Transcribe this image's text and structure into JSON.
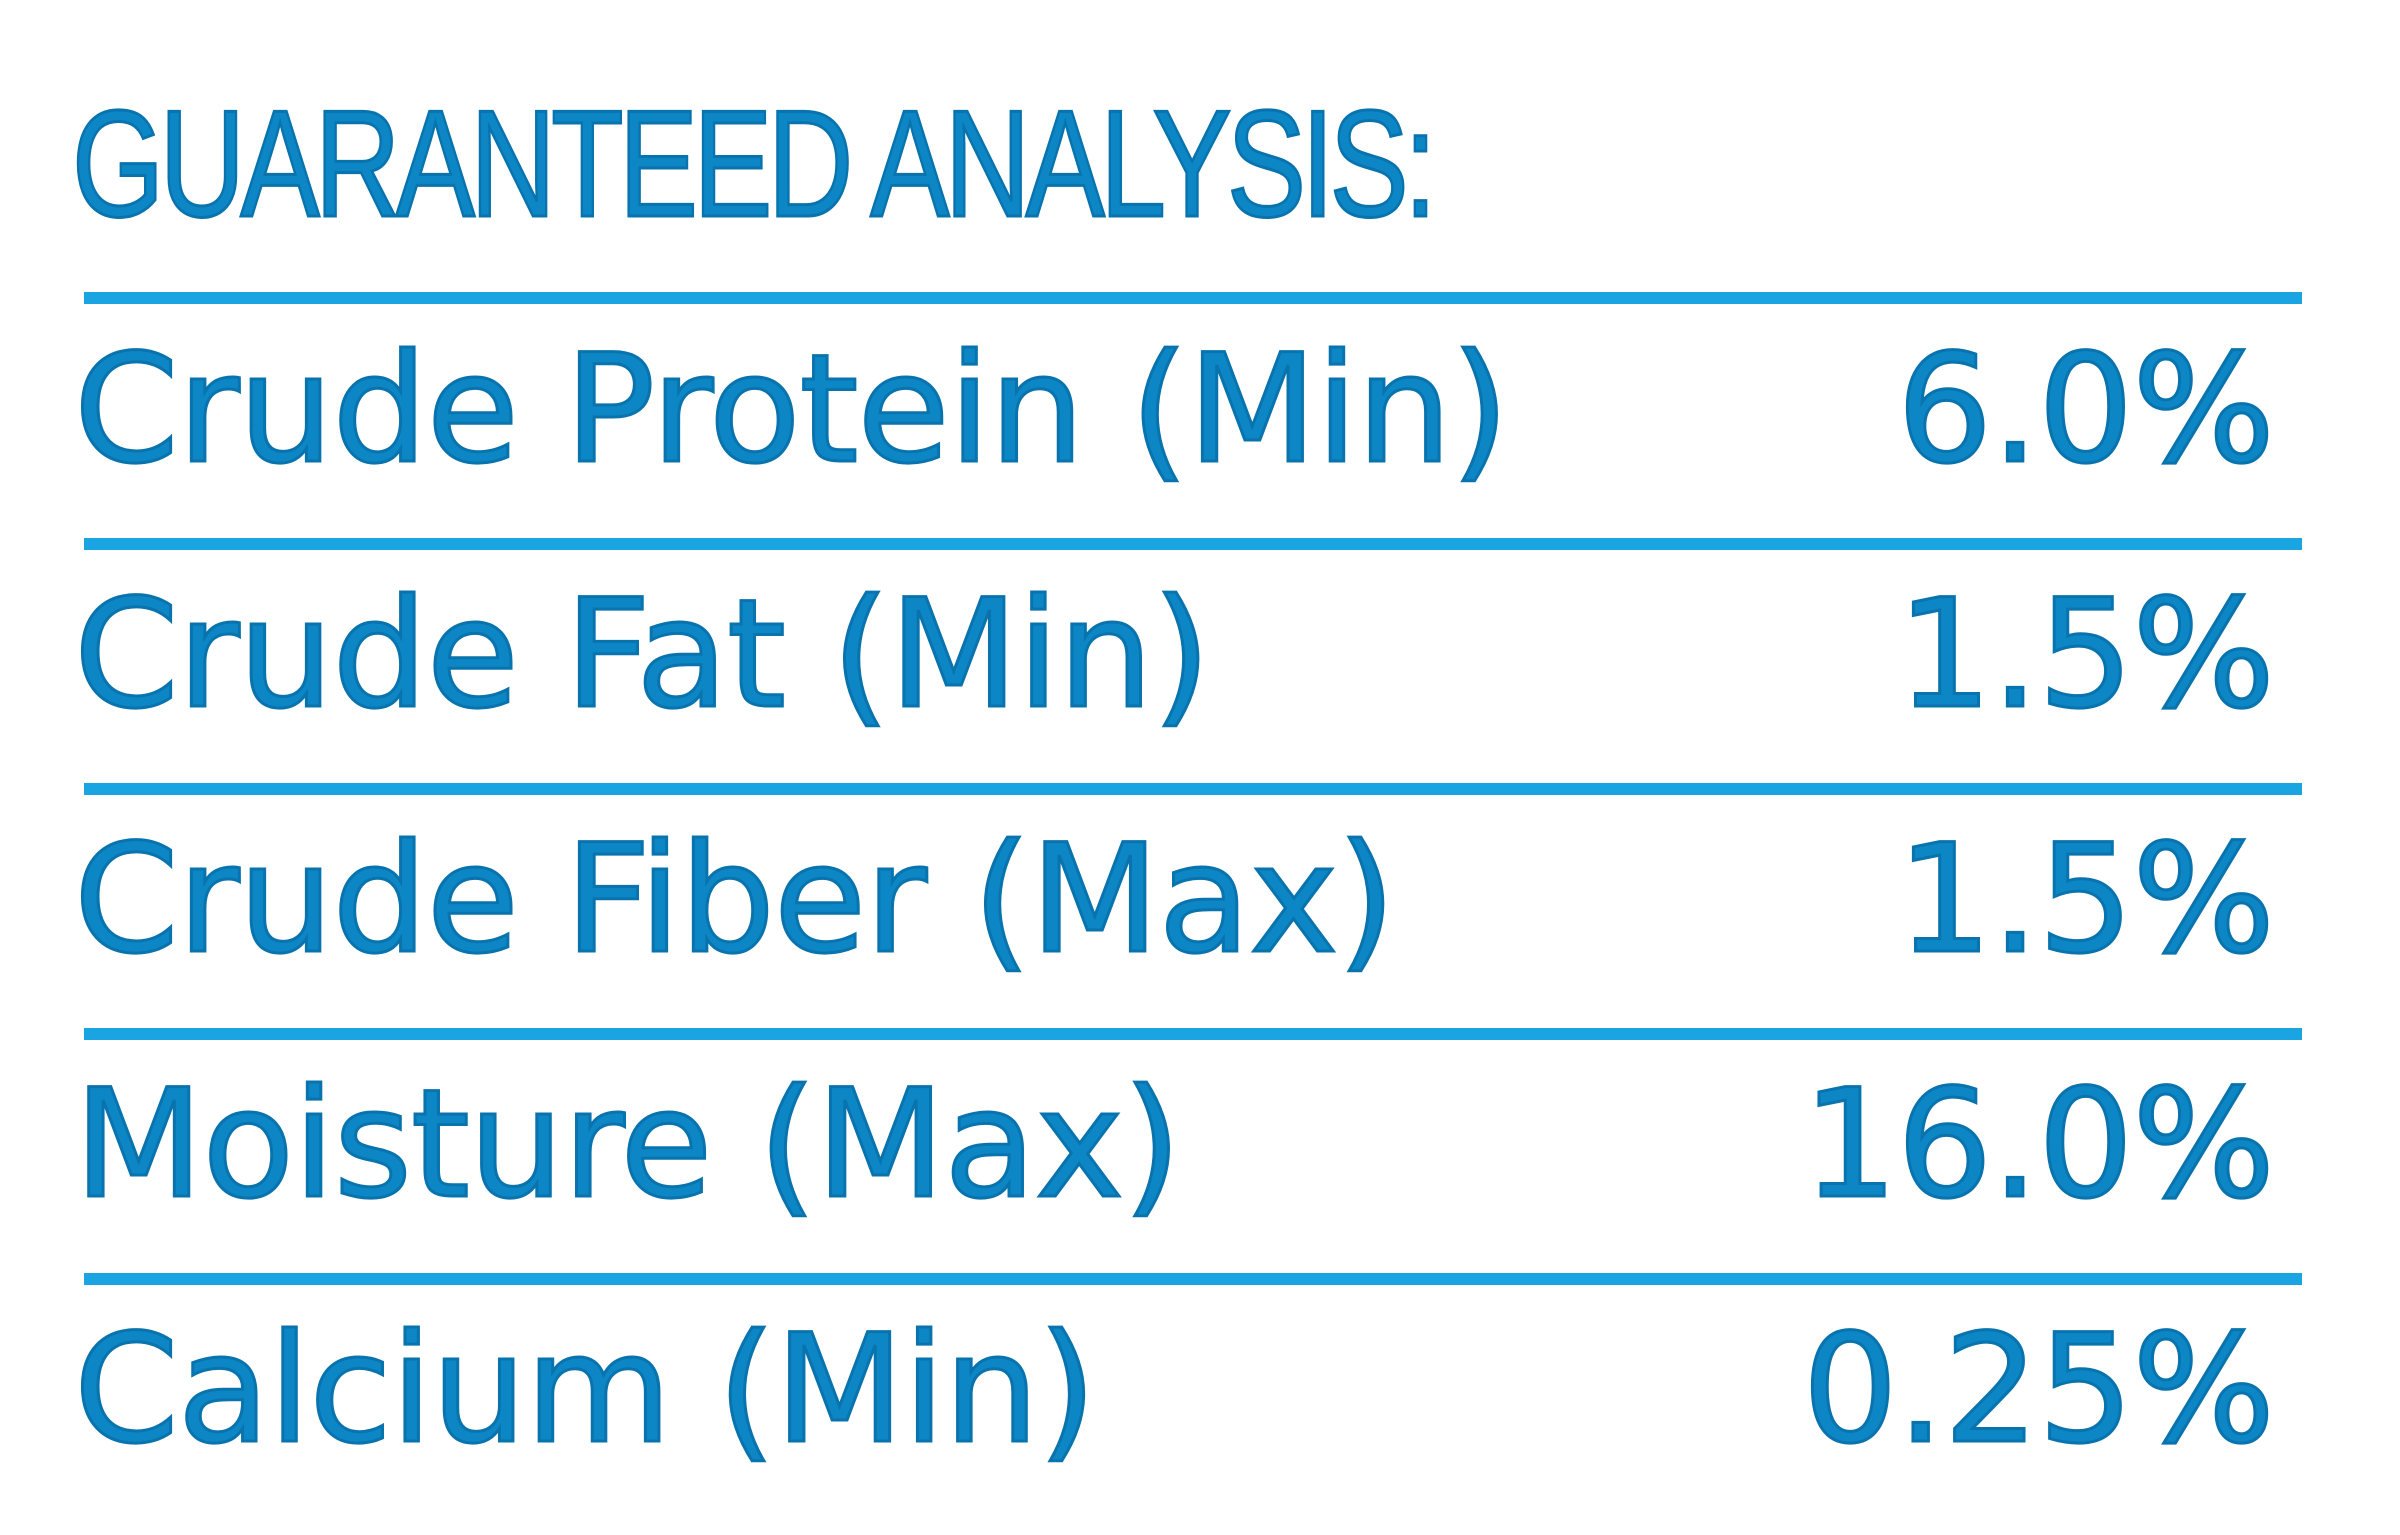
{
  "title": "GUARANTEED ANALYSIS:",
  "rows": [
    {
      "label": "Crude Protein (Min)",
      "value": "6.0%"
    },
    {
      "label": "Crude Fat (Min)",
      "value": "1.5%"
    },
    {
      "label": "Crude Fiber (Max)",
      "value": "1.5%"
    },
    {
      "label": "Moisture (Max)",
      "value": "16.0%"
    },
    {
      "label": "Calcium (Min)",
      "value": "0.25%"
    }
  ],
  "colors": {
    "text": "#0d86c6",
    "rule": "#1aa4e2",
    "background": "#ffffff"
  }
}
